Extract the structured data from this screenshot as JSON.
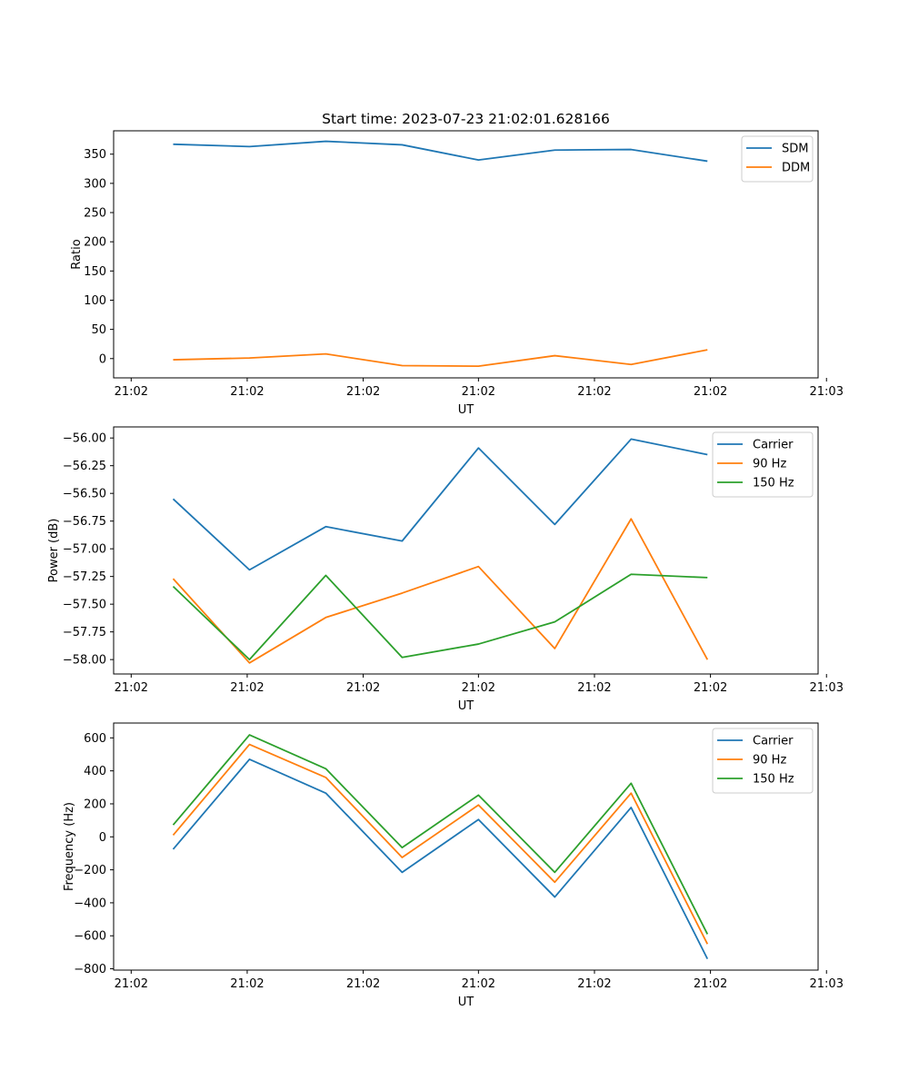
{
  "figure_title": "Start time: 2023-07-23 21:02:01.628166",
  "chart_data": [
    {
      "type": "line",
      "name": "ratio",
      "title": "Start time: 2023-07-23 21:02:01.628166",
      "xlabel": "UT",
      "ylabel": "Ratio",
      "x": [
        1,
        2,
        3,
        4,
        5,
        6,
        7,
        8
      ],
      "xlim": [
        0.22,
        9.45
      ],
      "x_ticks": [
        0.45,
        1.97,
        3.49,
        5.0,
        6.52,
        8.04,
        9.56
      ],
      "x_tick_labels": [
        "21:02",
        "21:02",
        "21:02",
        "21:02",
        "21:02",
        "21:02",
        "21:03"
      ],
      "ylim": [
        -33,
        390
      ],
      "y_ticks": [
        0,
        50,
        100,
        150,
        200,
        250,
        300,
        350
      ],
      "y_tick_labels": [
        "0",
        "50",
        "100",
        "150",
        "200",
        "250",
        "300",
        "350"
      ],
      "legend": "top-right",
      "series": [
        {
          "name": "SDM",
          "color": "#1f77b4",
          "values": [
            367,
            363,
            372,
            366,
            340,
            357,
            358,
            338
          ]
        },
        {
          "name": "DDM",
          "color": "#ff7f0e",
          "values": [
            -2,
            1,
            8,
            -12,
            -13,
            5,
            -10,
            15
          ]
        }
      ]
    },
    {
      "type": "line",
      "name": "power",
      "title": "",
      "xlabel": "UT",
      "ylabel": "Power (dB)",
      "x": [
        1,
        2,
        3,
        4,
        5,
        6,
        7,
        8
      ],
      "xlim": [
        0.22,
        9.45
      ],
      "x_ticks": [
        0.45,
        1.97,
        3.49,
        5.0,
        6.52,
        8.04,
        9.56
      ],
      "x_tick_labels": [
        "21:02",
        "21:02",
        "21:02",
        "21:02",
        "21:02",
        "21:02",
        "21:03"
      ],
      "ylim": [
        -58.13,
        -55.9
      ],
      "y_ticks": [
        -58.0,
        -57.75,
        -57.5,
        -57.25,
        -57.0,
        -56.75,
        -56.5,
        -56.25,
        -56.0
      ],
      "y_tick_labels": [
        "−58.00",
        "−57.75",
        "−57.50",
        "−57.25",
        "−57.00",
        "−56.75",
        "−56.50",
        "−56.25",
        "−56.00"
      ],
      "legend": "top-right",
      "series": [
        {
          "name": "Carrier",
          "color": "#1f77b4",
          "values": [
            -56.55,
            -57.19,
            -56.8,
            -56.93,
            -56.09,
            -56.78,
            -56.01,
            -56.15
          ]
        },
        {
          "name": "90 Hz",
          "color": "#ff7f0e",
          "values": [
            -57.27,
            -58.03,
            -57.62,
            -57.4,
            -57.16,
            -57.9,
            -56.73,
            -58.0
          ]
        },
        {
          "name": "150 Hz",
          "color": "#2ca02c",
          "values": [
            -57.34,
            -58.0,
            -57.24,
            -57.98,
            -57.86,
            -57.66,
            -57.23,
            -57.26
          ]
        }
      ]
    },
    {
      "type": "line",
      "name": "frequency",
      "title": "",
      "xlabel": "UT",
      "ylabel": "Frequency (Hz)",
      "x": [
        1,
        2,
        3,
        4,
        5,
        6,
        7,
        8
      ],
      "xlim": [
        0.22,
        9.45
      ],
      "x_ticks": [
        0.45,
        1.97,
        3.49,
        5.0,
        6.52,
        8.04,
        9.56
      ],
      "x_tick_labels": [
        "21:02",
        "21:02",
        "21:02",
        "21:02",
        "21:02",
        "21:02",
        "21:03"
      ],
      "ylim": [
        -808,
        690
      ],
      "y_ticks": [
        -800,
        -600,
        -400,
        -200,
        0,
        200,
        400,
        600
      ],
      "y_tick_labels": [
        "−800",
        "−600",
        "−400",
        "−200",
        "0",
        "200",
        "400",
        "600"
      ],
      "legend": "top-right",
      "series": [
        {
          "name": "Carrier",
          "color": "#1f77b4",
          "values": [
            -75,
            470,
            265,
            -215,
            105,
            -365,
            178,
            -740
          ]
        },
        {
          "name": "90 Hz",
          "color": "#ff7f0e",
          "values": [
            10,
            560,
            360,
            -125,
            193,
            -275,
            265,
            -650
          ]
        },
        {
          "name": "150 Hz",
          "color": "#2ca02c",
          "values": [
            72,
            618,
            413,
            -65,
            253,
            -215,
            325,
            -590
          ]
        }
      ]
    }
  ]
}
